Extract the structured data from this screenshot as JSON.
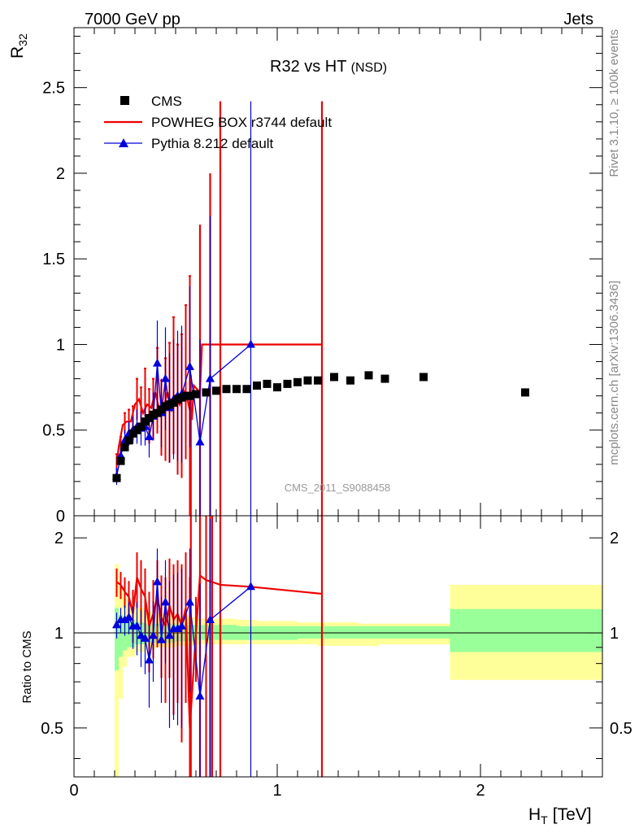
{
  "header": {
    "beam": "7000 GeV pp",
    "process": "Jets"
  },
  "side_labels": {
    "rivet": "Rivet 3.1.10, ≥ 100k events",
    "mcplots": "mcplots.cern.ch [arXiv:1306.3436]"
  },
  "chart_data": {
    "type": "line",
    "title": "R32 vs HT",
    "title_suffix": "(NSD)",
    "analysis_label": "CMS_2011_S9088458",
    "xlabel_main": "H",
    "xlabel_sub": "T",
    "xlabel_unit": "[TeV]",
    "ylabel_main": "R",
    "ylabel_sub": "32",
    "ratio_ylabel": "Ratio to CMS",
    "xlim": [
      0,
      2.6
    ],
    "ylim": [
      0,
      2.85
    ],
    "ratio_ylim": [
      0.35,
      2.35
    ],
    "ratio_log_scale": true,
    "x_ticks": [
      "0",
      "1",
      "2"
    ],
    "y_ticks": [
      "0",
      "0.5",
      "1",
      "1.5",
      "2",
      "2.5"
    ],
    "ratio_y_ticks": [
      "0.5",
      "1",
      "2"
    ],
    "legend_position": "top-left",
    "legend": [
      "CMS",
      "POWHEG BOX r3744 default",
      "Pythia 8.212 default"
    ],
    "colors": {
      "data": "#000000",
      "powheg": "#ee0000",
      "pythia": "#0000dd",
      "band_inner": "#99ff99",
      "band_outer": "#ffff99"
    },
    "data_x": [
      0.21,
      0.23,
      0.25,
      0.27,
      0.29,
      0.31,
      0.33,
      0.35,
      0.37,
      0.39,
      0.41,
      0.43,
      0.45,
      0.47,
      0.49,
      0.51,
      0.53,
      0.55,
      0.57,
      0.6,
      0.65,
      0.7,
      0.75,
      0.8,
      0.85,
      0.9,
      0.95,
      1.0,
      1.05,
      1.1,
      1.15,
      1.2,
      1.28,
      1.36,
      1.45,
      1.53,
      1.72,
      2.22
    ],
    "data_y": [
      0.22,
      0.32,
      0.4,
      0.44,
      0.48,
      0.5,
      0.52,
      0.55,
      0.57,
      0.59,
      0.6,
      0.62,
      0.64,
      0.65,
      0.66,
      0.68,
      0.69,
      0.7,
      0.7,
      0.71,
      0.72,
      0.73,
      0.74,
      0.74,
      0.74,
      0.76,
      0.77,
      0.75,
      0.77,
      0.78,
      0.79,
      0.79,
      0.81,
      0.79,
      0.82,
      0.8,
      0.81,
      0.72
    ],
    "band_edges": [
      0.2,
      0.22,
      0.24,
      0.26,
      0.3,
      0.35,
      0.4,
      0.5,
      0.6,
      0.7,
      0.8,
      0.9,
      1.0,
      1.1,
      1.2,
      1.3,
      1.4,
      1.5,
      1.6,
      1.85,
      2.6
    ],
    "band_inner": [
      [
        0.76,
        1.2
      ],
      [
        0.84,
        1.14
      ],
      [
        0.88,
        1.12
      ],
      [
        0.9,
        1.1
      ],
      [
        0.92,
        1.08
      ],
      [
        0.93,
        1.07
      ],
      [
        0.93,
        1.07
      ],
      [
        0.94,
        1.06
      ],
      [
        0.95,
        1.06
      ],
      [
        0.95,
        1.06
      ],
      [
        0.95,
        1.05
      ],
      [
        0.95,
        1.05
      ],
      [
        0.95,
        1.05
      ],
      [
        0.96,
        1.05
      ],
      [
        0.96,
        1.05
      ],
      [
        0.96,
        1.05
      ],
      [
        0.96,
        1.05
      ],
      [
        0.96,
        1.05
      ],
      [
        0.96,
        1.05
      ],
      [
        0.87,
        1.19
      ]
    ],
    "band_outer": [
      [
        0.35,
        1.65
      ],
      [
        0.62,
        1.4
      ],
      [
        0.78,
        1.3
      ],
      [
        0.84,
        1.24
      ],
      [
        0.87,
        1.2
      ],
      [
        0.89,
        1.17
      ],
      [
        0.9,
        1.15
      ],
      [
        0.91,
        1.12
      ],
      [
        0.92,
        1.11
      ],
      [
        0.92,
        1.11
      ],
      [
        0.92,
        1.1
      ],
      [
        0.92,
        1.09
      ],
      [
        0.92,
        1.09
      ],
      [
        0.92,
        1.08
      ],
      [
        0.91,
        1.08
      ],
      [
        0.91,
        1.08
      ],
      [
        0.91,
        1.07
      ],
      [
        0.92,
        1.07
      ],
      [
        0.92,
        1.07
      ],
      [
        0.71,
        1.42
      ]
    ],
    "powheg": {
      "name": "POWHEG BOX r3744 default",
      "x": [
        0.21,
        0.23,
        0.25,
        0.27,
        0.29,
        0.31,
        0.33,
        0.35,
        0.37,
        0.39,
        0.41,
        0.43,
        0.45,
        0.47,
        0.49,
        0.51,
        0.53,
        0.55,
        0.57
      ],
      "y": [
        0.3,
        0.4,
        0.54,
        0.56,
        0.54,
        0.68,
        0.63,
        0.72,
        0.58,
        0.62,
        0.73,
        0.57,
        0.62,
        0.66,
        0.76,
        0.62,
        0.64,
        0.78,
        0.7
      ],
      "err_lo": [
        0.06,
        0.06,
        0.06,
        0.06,
        0.1,
        0.12,
        0.12,
        0.14,
        0.16,
        0.18,
        0.25,
        0.22,
        0.3,
        0.35,
        0.4,
        0.38,
        0.42,
        0.45,
        0.7
      ],
      "err_hi": [
        0.06,
        0.06,
        0.06,
        0.06,
        0.1,
        0.12,
        0.12,
        0.14,
        0.16,
        0.18,
        0.25,
        0.22,
        0.3,
        0.35,
        0.4,
        0.38,
        0.42,
        0.45,
        0.7
      ],
      "line_x": [
        0.21,
        0.22,
        0.24,
        0.26,
        0.28,
        0.3,
        0.32,
        0.34,
        0.36,
        0.38,
        0.4,
        0.42,
        0.44,
        0.46,
        0.48,
        0.5,
        0.52,
        0.54,
        0.56,
        0.58,
        0.59,
        0.62,
        0.63,
        0.65,
        0.67,
        0.68,
        0.72,
        0.73,
        0.75,
        1.2,
        1.22
      ],
      "line_y": [
        0.3,
        0.4,
        0.53,
        0.55,
        0.55,
        0.65,
        0.68,
        0.6,
        0.65,
        0.63,
        0.72,
        0.62,
        0.63,
        0.72,
        0.62,
        0.7,
        0.65,
        0.73,
        0.67,
        0.56,
        0.76,
        0.72,
        1.0,
        1.0,
        1.0,
        1.0,
        1.0,
        1.0,
        1.0,
        1.0,
        1.0
      ],
      "ratio_x": [
        0.21,
        0.23,
        0.25,
        0.27,
        0.29,
        0.31,
        0.33,
        0.35,
        0.37,
        0.39,
        0.41,
        0.43,
        0.45,
        0.47,
        0.49,
        0.51,
        0.53,
        0.55,
        0.57,
        0.6,
        0.62,
        0.65,
        0.68,
        0.72,
        0.87,
        1.22
      ],
      "ratio_y": [
        1.45,
        1.42,
        1.35,
        1.3,
        1.15,
        1.5,
        1.38,
        1.3,
        1.05,
        1.15,
        1.3,
        1.12,
        1.05,
        1.22,
        1.1,
        1.15,
        1.05,
        1.2,
        0.5,
        1.0,
        1.52,
        1.47,
        1.45,
        1.42,
        1.4,
        1.33
      ],
      "ratio_err": [
        0.15,
        0.14,
        0.15,
        0.16,
        0.22,
        0.3,
        0.32,
        0.3,
        0.3,
        0.32,
        0.4,
        0.4,
        0.45,
        0.5,
        0.55,
        0.55,
        0.6,
        0.6,
        1.0,
        0.3,
        1.2,
        1.5,
        1.6,
        1.6,
        0,
        0
      ],
      "big_err_x": [
        0.575,
        0.62,
        0.67,
        0.72,
        1.22
      ],
      "big_err_lo": [
        0.0,
        0.0,
        0.0,
        0.0,
        0.0
      ],
      "big_err_hi": [
        0.82,
        1.7,
        2.0,
        2.42,
        2.42
      ]
    },
    "pythia": {
      "name": "Pythia 8.212 default",
      "x": [
        0.21,
        0.23,
        0.25,
        0.27,
        0.29,
        0.31,
        0.33,
        0.35,
        0.37,
        0.39,
        0.41,
        0.43,
        0.45,
        0.47,
        0.49,
        0.51,
        0.53,
        0.57,
        0.62,
        0.67,
        0.87
      ],
      "y": [
        0.23,
        0.35,
        0.44,
        0.48,
        0.5,
        0.52,
        0.51,
        0.52,
        0.46,
        0.58,
        0.89,
        0.6,
        0.8,
        0.63,
        0.68,
        0.7,
        0.71,
        0.87,
        0.43,
        0.8,
        1.0
      ],
      "err": [
        0.05,
        0.05,
        0.06,
        0.07,
        0.08,
        0.1,
        0.1,
        0.11,
        0.12,
        0.14,
        0.25,
        0.2,
        0.3,
        0.32,
        0.35,
        0.38,
        0.4,
        0.47,
        0.6,
        0.95,
        1.42
      ],
      "ratio_y": [
        1.06,
        1.1,
        1.1,
        1.12,
        1.05,
        1.05,
        0.98,
        0.96,
        0.82,
        0.98,
        1.45,
        0.95,
        1.25,
        0.98,
        1.03,
        1.03,
        1.05,
        1.25,
        0.63,
        1.1,
        1.4
      ],
      "ratio_err": [
        0.1,
        0.1,
        0.12,
        0.13,
        0.16,
        0.2,
        0.2,
        0.22,
        0.24,
        0.28,
        0.4,
        0.35,
        0.45,
        0.48,
        0.5,
        0.52,
        0.55,
        0.6,
        0.8,
        1.2,
        1.8
      ]
    }
  }
}
